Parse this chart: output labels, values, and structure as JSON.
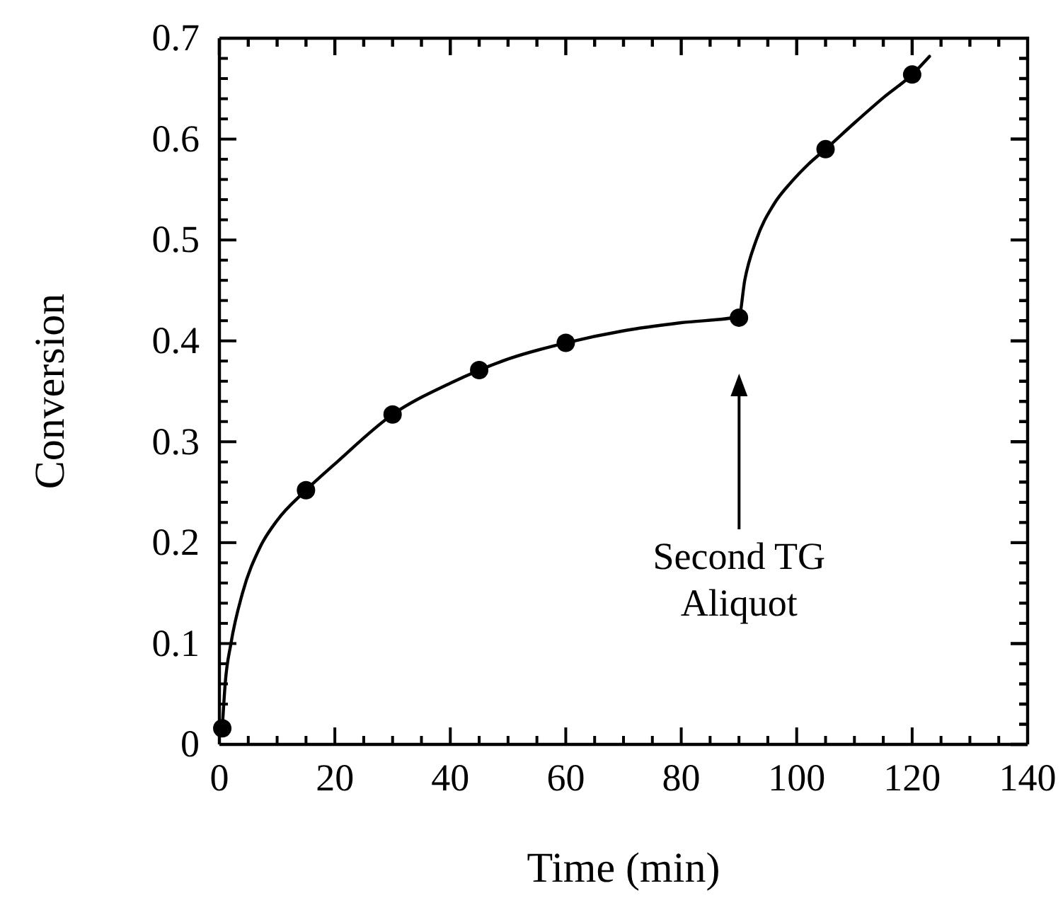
{
  "chart_data": {
    "type": "scatter",
    "xlabel": "Time (min)",
    "ylabel": "Conversion",
    "x": [
      0.5,
      15,
      30,
      45,
      60,
      90,
      105,
      120
    ],
    "series": [
      {
        "color": "#000000",
        "marker": "circle",
        "values": [
          0.016,
          0.252,
          0.327,
          0.371,
          0.398,
          0.423,
          0.59,
          0.664
        ]
      },
      {
        "type": "line",
        "color": "#000000",
        "marker": "none",
        "line_style": "solid",
        "x": [
          0.5,
          1,
          2,
          4,
          7,
          10,
          15,
          20,
          30,
          40,
          50,
          60,
          70,
          80,
          90,
          91,
          93,
          96,
          99,
          102,
          105,
          110,
          115,
          120,
          123
        ],
        "values": [
          0.016,
          0.06,
          0.1,
          0.15,
          0.195,
          0.222,
          0.252,
          0.278,
          0.327,
          0.358,
          0.382,
          0.398,
          0.41,
          0.418,
          0.424,
          0.46,
          0.5,
          0.535,
          0.557,
          0.575,
          0.59,
          0.616,
          0.641,
          0.664,
          0.682
        ]
      }
    ],
    "xlim": [
      0,
      140
    ],
    "ylim": [
      0,
      0.7
    ],
    "xticks": [
      0,
      {
        "value": 5,
        "label": null
      },
      {
        "value": 10,
        "label": null
      },
      {
        "value": 15,
        "label": null
      },
      20,
      {
        "value": 25,
        "label": null
      },
      {
        "value": 30,
        "label": null
      },
      {
        "value": 35,
        "label": null
      },
      40,
      {
        "value": 45,
        "label": null
      },
      {
        "value": 50,
        "label": null
      },
      {
        "value": 55,
        "label": null
      },
      60,
      {
        "value": 65,
        "label": null
      },
      {
        "value": 70,
        "label": null
      },
      {
        "value": 75,
        "label": null
      },
      80,
      {
        "value": 85,
        "label": null
      },
      {
        "value": 90,
        "label": null
      },
      {
        "value": 95,
        "label": null
      },
      100,
      {
        "value": 105,
        "label": null
      },
      {
        "value": 110,
        "label": null
      },
      {
        "value": 115,
        "label": null
      },
      120,
      {
        "value": 125,
        "label": null
      },
      {
        "value": 130,
        "label": null
      },
      {
        "value": 135,
        "label": null
      },
      140
    ],
    "yticks": [
      0,
      {
        "value": 0.02,
        "label": null
      },
      {
        "value": 0.04,
        "label": null
      },
      {
        "value": 0.06,
        "label": null
      },
      {
        "value": 0.08,
        "label": null
      },
      0.1,
      {
        "value": 0.12,
        "label": null
      },
      {
        "value": 0.14,
        "label": null
      },
      {
        "value": 0.16,
        "label": null
      },
      {
        "value": 0.18,
        "label": null
      },
      0.2,
      {
        "value": 0.22,
        "label": null
      },
      {
        "value": 0.24,
        "label": null
      },
      {
        "value": 0.26,
        "label": null
      },
      {
        "value": 0.28,
        "label": null
      },
      0.3,
      {
        "value": 0.32,
        "label": null
      },
      {
        "value": 0.34,
        "label": null
      },
      {
        "value": 0.36,
        "label": null
      },
      {
        "value": 0.38,
        "label": null
      },
      0.4,
      {
        "value": 0.42,
        "label": null
      },
      {
        "value": 0.44,
        "label": null
      },
      {
        "value": 0.46,
        "label": null
      },
      {
        "value": 0.48,
        "label": null
      },
      0.5,
      {
        "value": 0.52,
        "label": null
      },
      {
        "value": 0.54,
        "label": null
      },
      {
        "value": 0.56,
        "label": null
      },
      {
        "value": 0.58,
        "label": null
      },
      0.6,
      {
        "value": 0.62,
        "label": null
      },
      {
        "value": 0.64,
        "label": null
      },
      {
        "value": 0.66,
        "label": null
      },
      {
        "value": 0.68,
        "label": null
      },
      0.7
    ],
    "grid": false,
    "annotations": [
      "Second TG\nAliquot"
    ]
  }
}
